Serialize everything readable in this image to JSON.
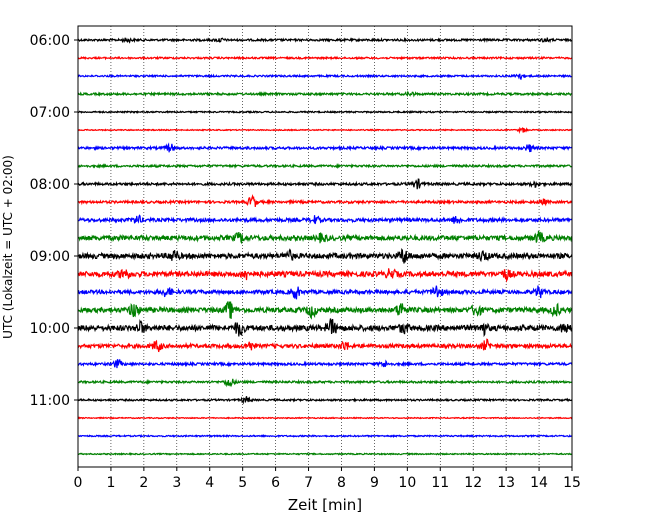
{
  "chart_data": {
    "type": "line",
    "title": "",
    "xlabel": "Zeit  [min]",
    "ylabel": "UTC (Lokalzeit = UTC + 02:00)",
    "xlim": [
      0,
      15
    ],
    "x_ticks": [
      0,
      1,
      2,
      3,
      4,
      5,
      6,
      7,
      8,
      9,
      10,
      11,
      12,
      13,
      14,
      15
    ],
    "x_gridlines": "dotted",
    "y_ticks": [
      {
        "label": "06:00",
        "row": 0
      },
      {
        "label": "07:00",
        "row": 4
      },
      {
        "label": "08:00",
        "row": 8
      },
      {
        "label": "09:00",
        "row": 12
      },
      {
        "label": "10:00",
        "row": 16
      },
      {
        "label": "11:00",
        "row": 20
      }
    ],
    "row_interval_minutes": 15,
    "color_cycle": [
      "#000000",
      "#ff0000",
      "#0000ff",
      "#008000"
    ],
    "series": [
      {
        "start": "06:00",
        "color": "#000000",
        "amplitude": 0.12,
        "events": [
          [
            1.5,
            0.2
          ],
          [
            4.3,
            0.2
          ],
          [
            14.2,
            0.2
          ]
        ]
      },
      {
        "start": "06:15",
        "color": "#ff0000",
        "amplitude": 0.1,
        "events": []
      },
      {
        "start": "06:30",
        "color": "#0000ff",
        "amplitude": 0.1,
        "events": [
          [
            13.4,
            0.35
          ]
        ]
      },
      {
        "start": "06:45",
        "color": "#008000",
        "amplitude": 0.12,
        "events": [
          [
            10.1,
            0.2
          ]
        ]
      },
      {
        "start": "07:00",
        "color": "#000000",
        "amplitude": 0.08,
        "events": []
      },
      {
        "start": "07:15",
        "color": "#ff0000",
        "amplitude": 0.06,
        "events": [
          [
            13.5,
            0.25
          ]
        ]
      },
      {
        "start": "07:30",
        "color": "#0000ff",
        "amplitude": 0.14,
        "events": [
          [
            2.8,
            0.45
          ],
          [
            13.7,
            0.4
          ]
        ]
      },
      {
        "start": "07:45",
        "color": "#008000",
        "amplitude": 0.12,
        "events": []
      },
      {
        "start": "08:00",
        "color": "#000000",
        "amplitude": 0.14,
        "events": [
          [
            10.3,
            0.5
          ],
          [
            13.9,
            0.3
          ]
        ]
      },
      {
        "start": "08:15",
        "color": "#ff0000",
        "amplitude": 0.14,
        "events": [
          [
            5.3,
            0.7
          ],
          [
            14.1,
            0.3
          ]
        ]
      },
      {
        "start": "08:30",
        "color": "#0000ff",
        "amplitude": 0.2,
        "events": [
          [
            1.8,
            0.45
          ],
          [
            7.2,
            0.4
          ],
          [
            11.5,
            0.45
          ]
        ]
      },
      {
        "start": "08:45",
        "color": "#008000",
        "amplitude": 0.28,
        "events": [
          [
            4.9,
            0.5
          ],
          [
            7.4,
            0.4
          ],
          [
            14.0,
            0.6
          ]
        ]
      },
      {
        "start": "09:00",
        "color": "#000000",
        "amplitude": 0.3,
        "events": [
          [
            2.9,
            0.6
          ],
          [
            6.4,
            0.5
          ],
          [
            9.9,
            0.8
          ],
          [
            12.3,
            0.5
          ]
        ]
      },
      {
        "start": "09:15",
        "color": "#ff0000",
        "amplitude": 0.3,
        "events": [
          [
            1.4,
            0.6
          ],
          [
            5.1,
            0.5
          ],
          [
            9.5,
            0.5
          ],
          [
            13.0,
            0.5
          ]
        ]
      },
      {
        "start": "09:30",
        "color": "#0000ff",
        "amplitude": 0.22,
        "events": [
          [
            2.7,
            0.5
          ],
          [
            6.6,
            0.7
          ],
          [
            10.9,
            0.8
          ],
          [
            14.0,
            0.6
          ]
        ]
      },
      {
        "start": "09:45",
        "color": "#008000",
        "amplitude": 0.28,
        "events": [
          [
            1.7,
            0.8
          ],
          [
            4.6,
            0.9
          ],
          [
            7.1,
            0.7
          ],
          [
            9.8,
            0.8
          ],
          [
            12.1,
            0.7
          ],
          [
            14.5,
            0.6
          ]
        ]
      },
      {
        "start": "10:00",
        "color": "#000000",
        "amplitude": 0.32,
        "events": [
          [
            1.9,
            0.6
          ],
          [
            4.9,
            0.8
          ],
          [
            7.7,
            0.9
          ],
          [
            9.9,
            0.5
          ],
          [
            12.3,
            0.6
          ],
          [
            14.8,
            0.5
          ]
        ]
      },
      {
        "start": "10:15",
        "color": "#ff0000",
        "amplitude": 0.22,
        "events": [
          [
            2.4,
            0.6
          ],
          [
            5.2,
            0.5
          ],
          [
            8.1,
            0.5
          ],
          [
            12.4,
            0.6
          ]
        ]
      },
      {
        "start": "10:30",
        "color": "#0000ff",
        "amplitude": 0.14,
        "events": [
          [
            1.2,
            0.45
          ],
          [
            9.3,
            0.3
          ]
        ]
      },
      {
        "start": "10:45",
        "color": "#008000",
        "amplitude": 0.12,
        "events": [
          [
            4.6,
            0.55
          ]
        ]
      },
      {
        "start": "11:00",
        "color": "#000000",
        "amplitude": 0.1,
        "events": [
          [
            5.1,
            0.35
          ]
        ]
      },
      {
        "start": "11:15",
        "color": "#ff0000",
        "amplitude": 0.06,
        "events": []
      },
      {
        "start": "11:30",
        "color": "#0000ff",
        "amplitude": 0.08,
        "events": []
      },
      {
        "start": "11:45",
        "color": "#008000",
        "amplitude": 0.07,
        "events": []
      }
    ]
  }
}
